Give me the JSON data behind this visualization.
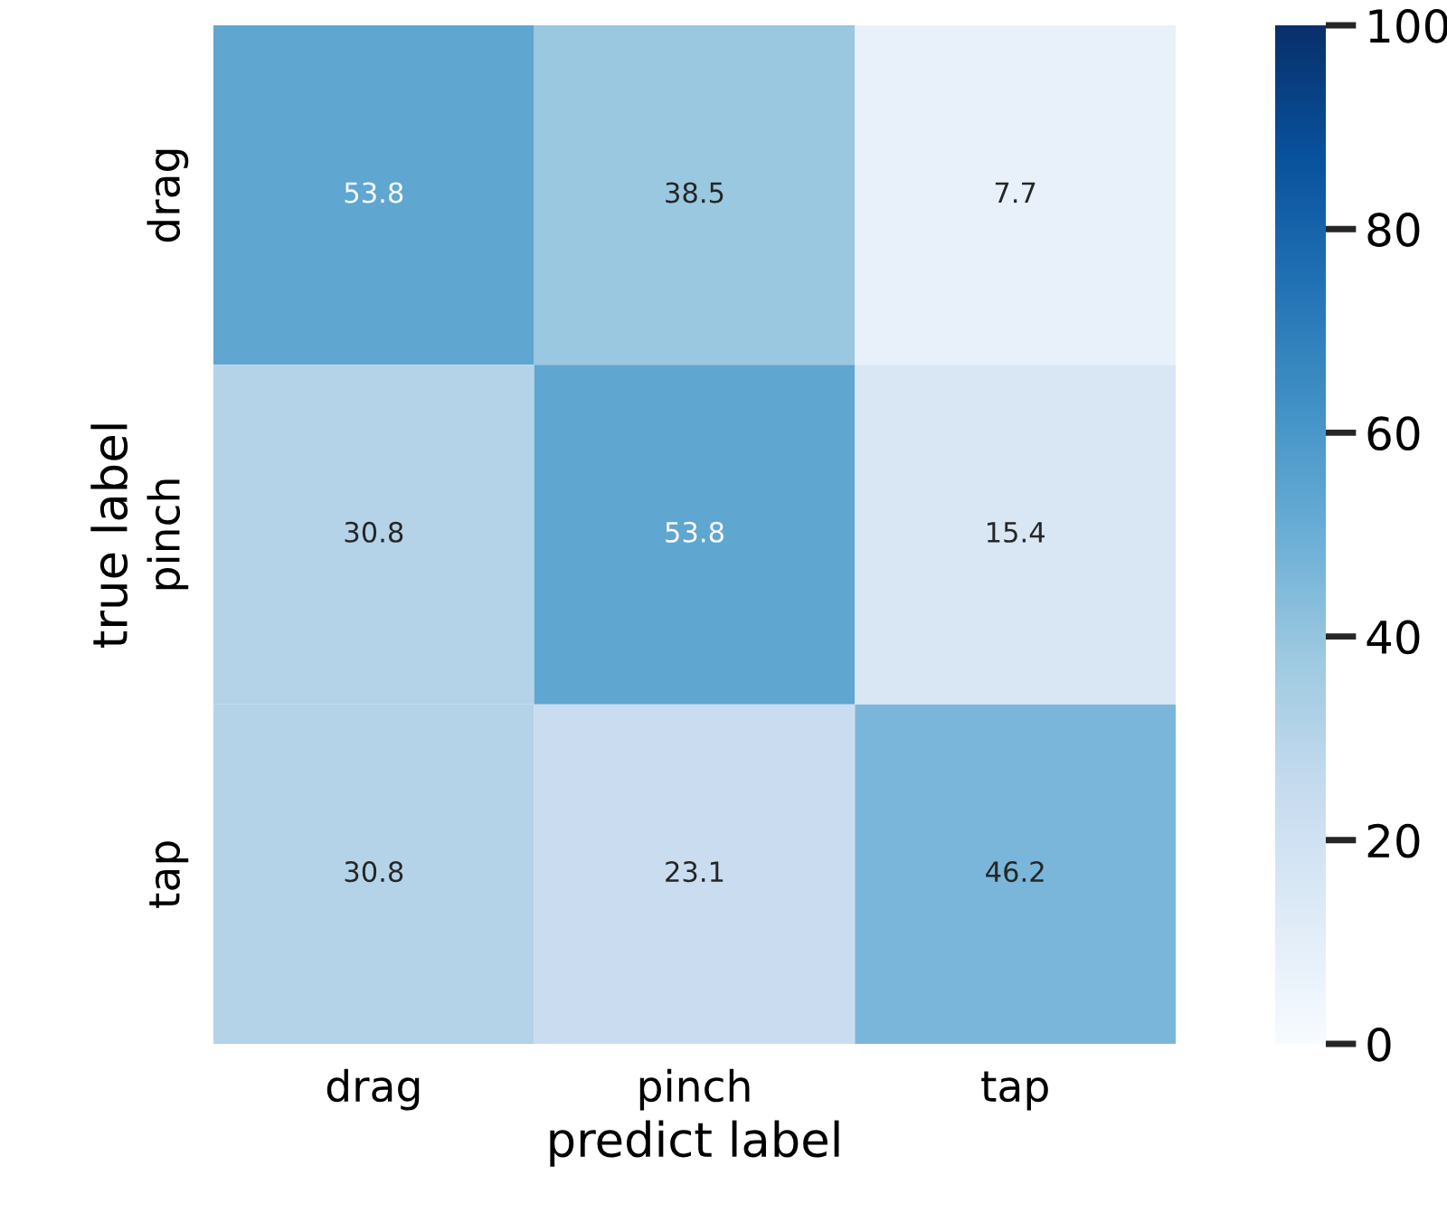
{
  "chart_data": {
    "type": "heatmap",
    "xlabel": "predict label",
    "ylabel": "true label",
    "categories": [
      "drag",
      "pinch",
      "tap"
    ],
    "y_categories": [
      "drag",
      "pinch",
      "tap"
    ],
    "cells": [
      [
        53.8,
        38.5,
        7.7
      ],
      [
        30.8,
        53.8,
        15.4
      ],
      [
        30.8,
        23.1,
        46.2
      ]
    ],
    "data_labels": true,
    "clim": [
      0,
      100
    ],
    "cticks": [
      0,
      20,
      40,
      60,
      80,
      100
    ],
    "grid": false
  }
}
